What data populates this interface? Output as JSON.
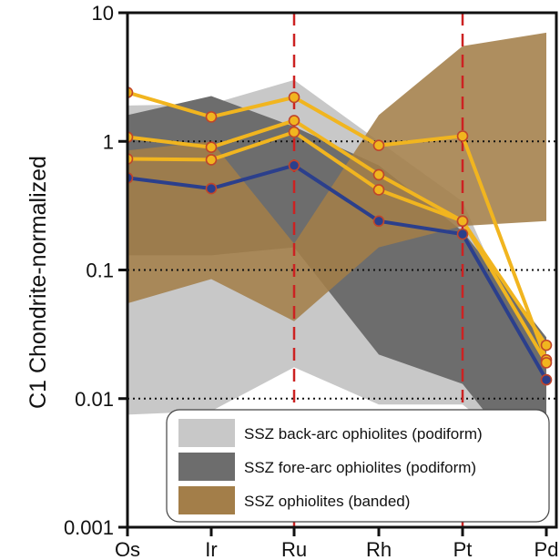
{
  "chart_data": {
    "type": "line",
    "title": "",
    "xlabel": "",
    "ylabel": "C1 Chondrite-normalized",
    "y_scale": "log",
    "ylim": [
      0.001,
      10
    ],
    "y_ticks": [
      {
        "value": 10,
        "label": "10"
      },
      {
        "value": 1,
        "label": "1"
      },
      {
        "value": 0.1,
        "label": "0.1"
      },
      {
        "value": 0.01,
        "label": "0.01"
      },
      {
        "value": 0.001,
        "label": "0.001"
      }
    ],
    "categories": [
      "Os",
      "Ir",
      "Ru",
      "Rh",
      "Pt",
      "Pd"
    ],
    "reference_lines": {
      "horizontal_dotted": [
        1,
        0.1,
        0.01
      ],
      "vertical_dashed": [
        "Ru",
        "Pt"
      ],
      "vertical_color": "#cc2222"
    },
    "bands": [
      {
        "name": "SSZ back-arc ophiolites (podiform)",
        "color": "#c8c8c8",
        "upper": [
          1.9,
          1.95,
          3.0,
          1.0,
          0.34,
          0.012
        ],
        "lower": [
          0.0075,
          0.008,
          0.0175,
          0.009,
          0.009,
          0.0028
        ]
      },
      {
        "name": "SSZ fore-arc ophiolites (podiform)",
        "color": "#6d6d6d",
        "upper": [
          1.6,
          2.25,
          1.3,
          0.65,
          0.2,
          0.03
        ],
        "lower": [
          0.13,
          0.13,
          0.15,
          0.022,
          0.013,
          0.002
        ]
      },
      {
        "name": "SSZ ophiolites (banded)",
        "color": "#a37e49",
        "upper": [
          0.85,
          1.0,
          0.16,
          1.6,
          5.5,
          7.0
        ],
        "lower": [
          0.055,
          0.085,
          0.04,
          0.15,
          0.22,
          0.24
        ]
      }
    ],
    "series": [
      {
        "color": "#f1b51f",
        "values": [
          2.4,
          1.55,
          2.2,
          0.93,
          1.1,
          0.02
        ]
      },
      {
        "color": "#f1b51f",
        "values": [
          1.08,
          0.9,
          1.45,
          0.55,
          0.24,
          0.026
        ]
      },
      {
        "color": "#f1b51f",
        "values": [
          0.73,
          0.72,
          1.18,
          0.42,
          0.24,
          0.019
        ]
      },
      {
        "color": "#2b3f8c",
        "values": [
          0.52,
          0.43,
          0.65,
          0.24,
          0.19,
          0.014
        ]
      }
    ],
    "legend": {
      "placement": "bottom-center",
      "entries": [
        "SSZ back-arc ophiolites (podiform)",
        "SSZ fore-arc ophiolites (podiform)",
        "SSZ ophiolites (banded)"
      ]
    }
  }
}
